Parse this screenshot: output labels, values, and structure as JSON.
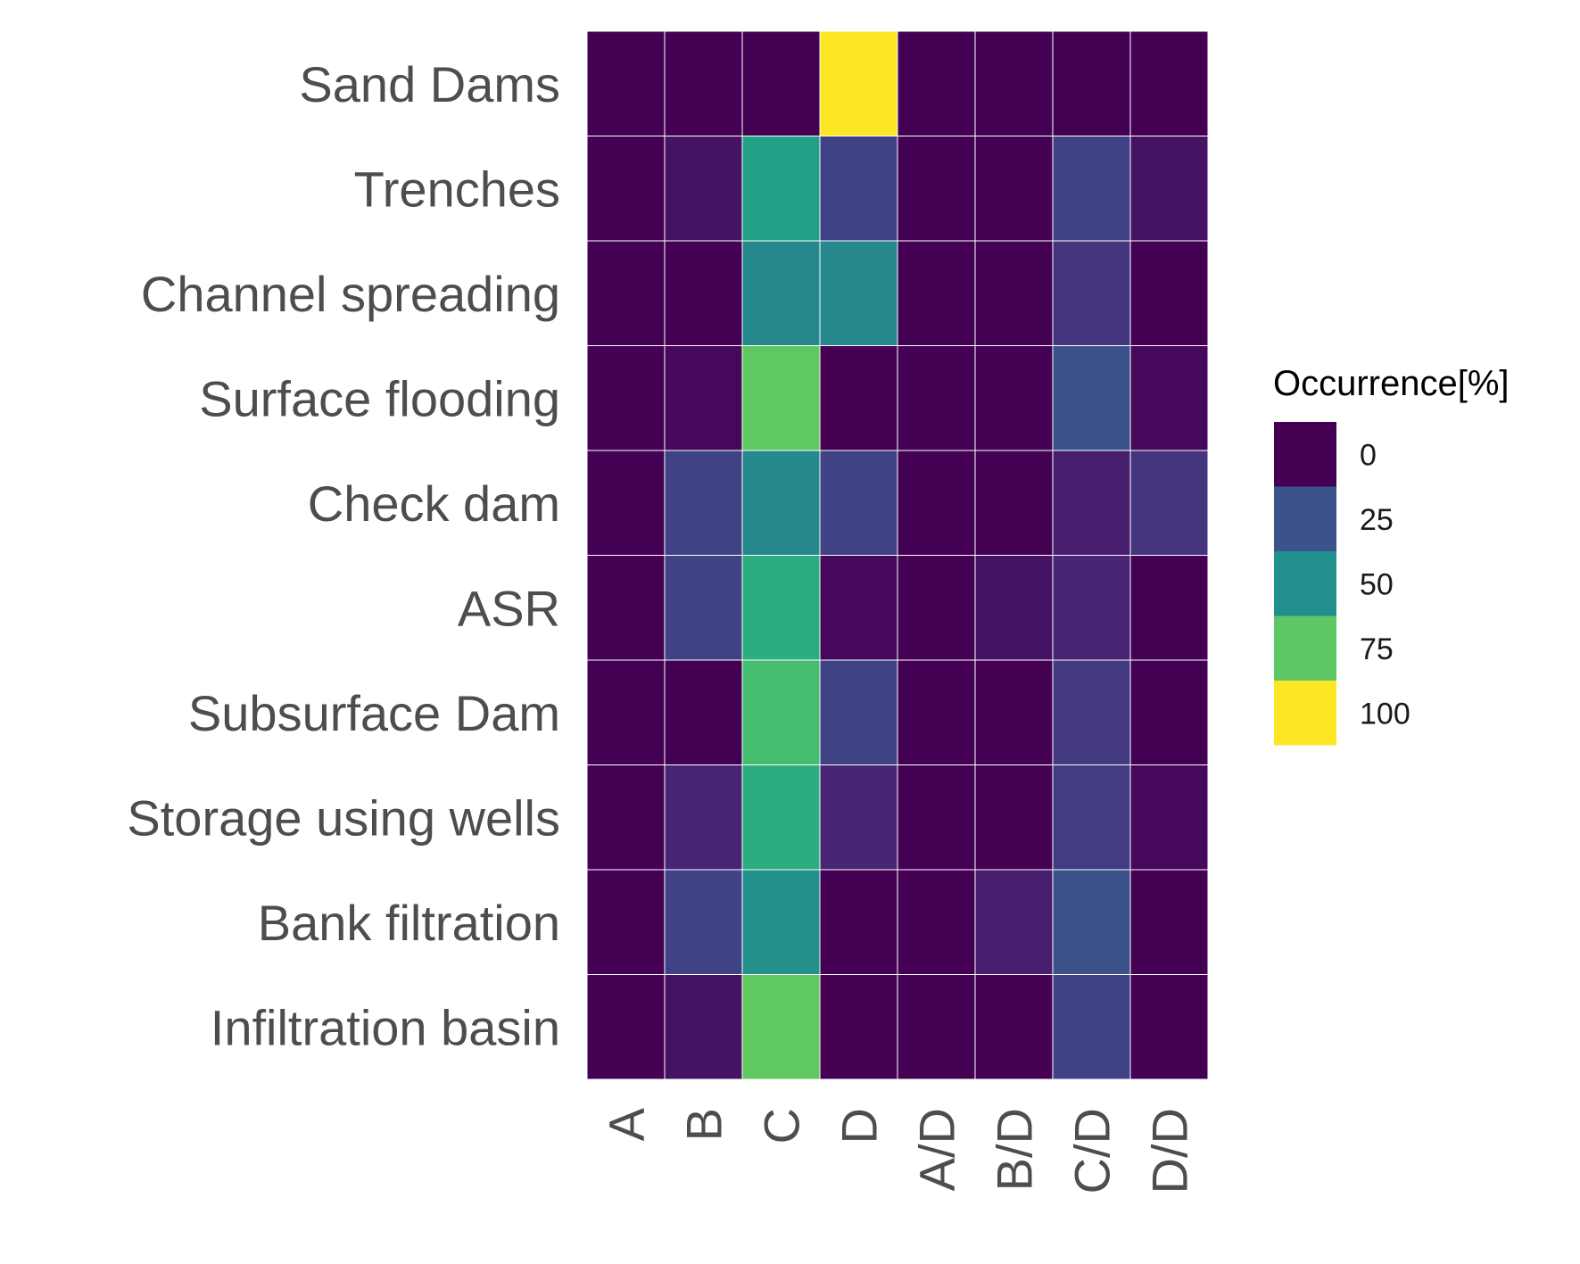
{
  "chart_data": {
    "type": "heatmap",
    "title": "",
    "xlabel": "",
    "ylabel": "",
    "x_categories": [
      "A",
      "B",
      "C",
      "D",
      "A/D",
      "B/D",
      "C/D",
      "D/D"
    ],
    "y_categories": [
      "Sand Dams",
      "Trenches",
      "Channel spreading",
      "Surface flooding",
      "Check dam",
      "ASR",
      "Subsurface Dam",
      "Storage using wells",
      "Bank filtration",
      "Infiltration basin"
    ],
    "values": [
      [
        0,
        0,
        0,
        100,
        0,
        0,
        0,
        0
      ],
      [
        0,
        5,
        57,
        20,
        0,
        0,
        20,
        5
      ],
      [
        0,
        0,
        47,
        47,
        0,
        0,
        15,
        0
      ],
      [
        0,
        2,
        75,
        0,
        0,
        0,
        25,
        2
      ],
      [
        0,
        20,
        47,
        20,
        0,
        0,
        8,
        15
      ],
      [
        0,
        20,
        62,
        2,
        0,
        5,
        10,
        0
      ],
      [
        0,
        0,
        70,
        20,
        0,
        0,
        17,
        0
      ],
      [
        0,
        10,
        62,
        10,
        0,
        0,
        18,
        2
      ],
      [
        0,
        20,
        50,
        0,
        0,
        8,
        25,
        0
      ],
      [
        0,
        5,
        75,
        0,
        0,
        0,
        20,
        0
      ]
    ],
    "colorscale": "viridis",
    "value_range": [
      0,
      100
    ],
    "legend": {
      "title": "Occurrence[%]",
      "ticks": [
        0,
        25,
        50,
        75,
        100
      ],
      "tick_labels": [
        "0",
        "25",
        "50",
        "75",
        "100"
      ],
      "colors": [
        "#440154",
        "#3b528b",
        "#21908c",
        "#5dc863",
        "#fde725"
      ],
      "placement": "right"
    },
    "grid": true,
    "grid_color": "#ffffff"
  }
}
